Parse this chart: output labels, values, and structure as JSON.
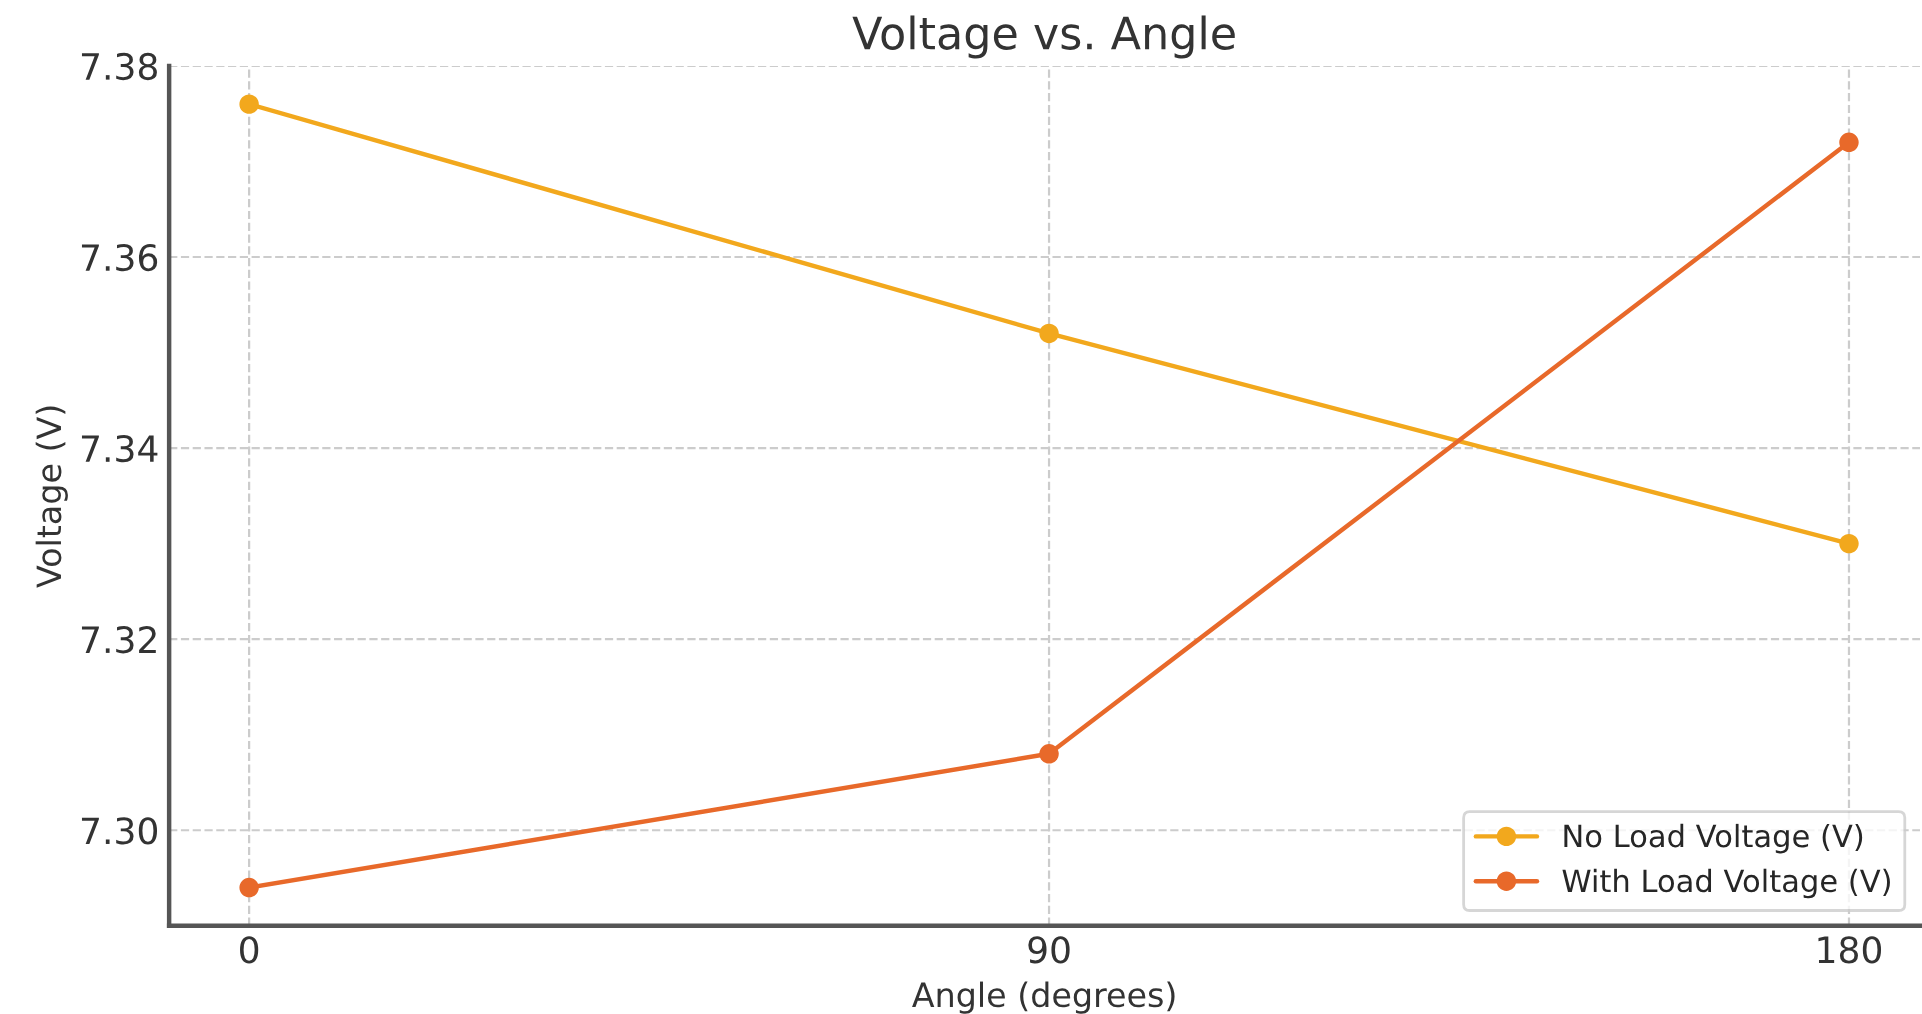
{
  "chart_data": {
    "type": "line",
    "title": "Voltage vs. Angle",
    "xlabel": "Angle (degrees)",
    "ylabel": "Voltage (V)",
    "x": [
      0,
      90,
      180
    ],
    "series": [
      {
        "name": "No Load Voltage (V)",
        "color": "#f2a81d",
        "values": [
          7.376,
          7.352,
          7.33
        ]
      },
      {
        "name": "With Load Voltage (V)",
        "color": "#e8692a",
        "values": [
          7.294,
          7.308,
          7.372
        ]
      }
    ],
    "xlim": [
      -9,
      188
    ],
    "xticks": [
      0,
      90,
      180
    ],
    "ylim": [
      7.29,
      7.38
    ],
    "yticks": [
      {
        "value": 7.3,
        "label": "7.30"
      },
      {
        "value": 7.32,
        "label": "7.32"
      },
      {
        "value": 7.34,
        "label": "7.34"
      },
      {
        "value": 7.36,
        "label": "7.36"
      },
      {
        "value": 7.38,
        "label": "7.38"
      }
    ],
    "grid": true,
    "legend": "bottom right",
    "marker": "circle",
    "line_style": "solid"
  }
}
